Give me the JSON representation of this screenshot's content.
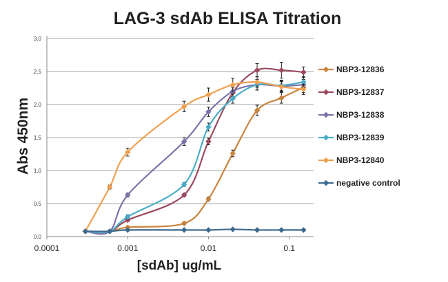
{
  "chart_data": {
    "type": "line",
    "title": "LAG-3 sdAb ELISA Titration",
    "xlabel": "[sdAb] ug/mL",
    "ylabel": "Abs  450nm",
    "x_scale": "log",
    "xlim": [
      0.0001,
      0.2
    ],
    "ylim": [
      0,
      3.0
    ],
    "xticks": [
      0.0001,
      0.001,
      0.01,
      0.1
    ],
    "xtick_labels": [
      "0.0001",
      "0.001",
      "0.01",
      "0.1"
    ],
    "yticks": [
      0.0,
      0.5,
      1.0,
      1.5,
      2.0,
      2.5,
      3.0
    ],
    "ytick_labels": [
      "0.0",
      "0.5",
      "1.0",
      "1.5",
      "2.0",
      "2.5",
      "3.0"
    ],
    "grid": "horizontal",
    "legend_position": "right",
    "series": [
      {
        "name": "NBP3-12836",
        "color": "#c8843e",
        "x": [
          0.0003,
          0.0006,
          0.001,
          0.005,
          0.01,
          0.02,
          0.04,
          0.08,
          0.15
        ],
        "y": [
          0.08,
          0.08,
          0.14,
          0.2,
          0.57,
          1.26,
          1.91,
          2.1,
          2.26
        ],
        "err": [
          0.01,
          0.01,
          0.02,
          0.02,
          0.03,
          0.05,
          0.08,
          0.08,
          0.08
        ]
      },
      {
        "name": "NBP3-12837",
        "color": "#9b4a5e",
        "x": [
          0.0003,
          0.0006,
          0.001,
          0.005,
          0.01,
          0.02,
          0.04,
          0.08,
          0.15
        ],
        "y": [
          0.08,
          0.08,
          0.25,
          0.63,
          1.44,
          2.18,
          2.52,
          2.52,
          2.49
        ],
        "err": [
          0.01,
          0.01,
          0.02,
          0.02,
          0.05,
          0.08,
          0.1,
          0.12,
          0.08
        ]
      },
      {
        "name": "NBP3-12838",
        "color": "#7b73a8",
        "x": [
          0.0003,
          0.0006,
          0.001,
          0.005,
          0.01,
          0.02,
          0.04,
          0.08,
          0.15
        ],
        "y": [
          0.08,
          0.08,
          0.63,
          1.44,
          1.89,
          2.2,
          2.3,
          2.28,
          2.3
        ],
        "err": [
          0.01,
          0.01,
          0.03,
          0.06,
          0.07,
          0.08,
          0.08,
          0.08,
          0.08
        ]
      },
      {
        "name": "NBP3-12839",
        "color": "#4bacc6",
        "x": [
          0.0003,
          0.0006,
          0.001,
          0.005,
          0.01,
          0.02,
          0.04,
          0.08,
          0.15
        ],
        "y": [
          0.08,
          0.08,
          0.3,
          0.79,
          1.66,
          2.09,
          2.3,
          2.29,
          2.34
        ],
        "err": [
          0.01,
          0.01,
          0.03,
          0.03,
          0.06,
          0.07,
          0.08,
          0.08,
          0.08
        ]
      },
      {
        "name": "NBP3-12840",
        "color": "#f0a050",
        "x": [
          0.0003,
          0.0006,
          0.001,
          0.005,
          0.01,
          0.02,
          0.04,
          0.08,
          0.15
        ],
        "y": [
          0.08,
          0.75,
          1.28,
          1.97,
          2.15,
          2.3,
          2.34,
          2.27,
          2.23
        ],
        "err": [
          0.01,
          0.03,
          0.06,
          0.08,
          0.1,
          0.1,
          0.08,
          0.08,
          0.08
        ]
      },
      {
        "name": "negative control",
        "color": "#3d6a8e",
        "x": [
          0.0003,
          0.0006,
          0.001,
          0.005,
          0.01,
          0.02,
          0.04,
          0.08,
          0.15
        ],
        "y": [
          0.08,
          0.08,
          0.1,
          0.1,
          0.1,
          0.11,
          0.1,
          0.1,
          0.1
        ],
        "err": [
          0.0,
          0.0,
          0.0,
          0.0,
          0.0,
          0.0,
          0.0,
          0.0,
          0.0
        ]
      }
    ]
  }
}
